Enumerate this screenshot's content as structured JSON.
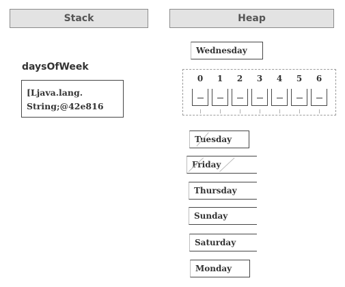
{
  "stack": {
    "header": "Stack",
    "variable": {
      "name": "daysOfWeek",
      "reference_line1": "[Ljava.lang.",
      "reference_line2": "String;@42e816"
    }
  },
  "heap": {
    "header": "Heap",
    "top_string": "Wednesday",
    "array": {
      "indices": [
        "0",
        "1",
        "2",
        "3",
        "4",
        "5",
        "6"
      ]
    },
    "strings": [
      "Tuesday",
      "Friday",
      "Thursday",
      "Sunday",
      "Saturday",
      "Monday"
    ]
  }
}
